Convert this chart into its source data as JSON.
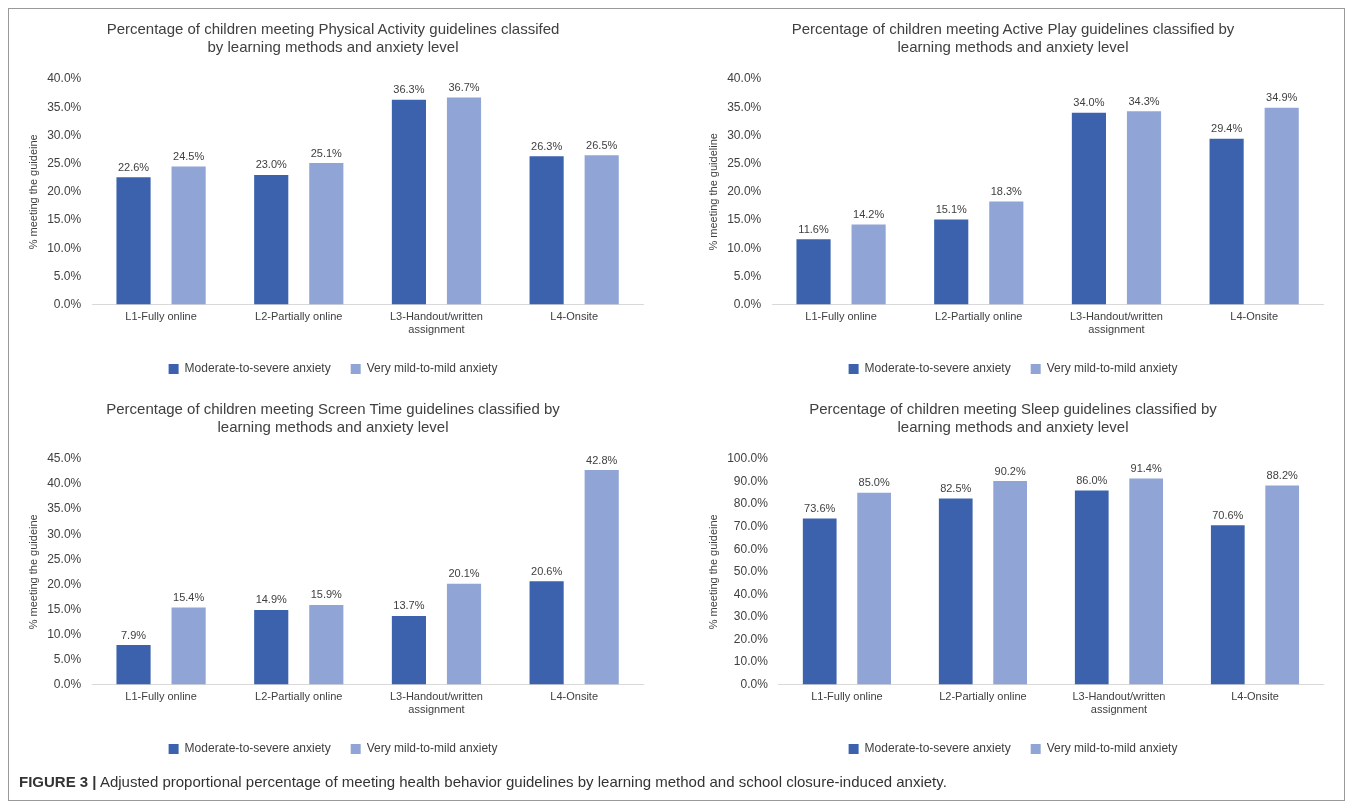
{
  "chart_data": [
    {
      "type": "bar",
      "title": "Percentage of children meeting Physical Activity guidelines classifed by learning methods and anxiety level",
      "ylabel": "% meeting the guideine",
      "categories": [
        "L1-Fully online",
        "L2-Partially online",
        "L3-Handout/written assignment",
        "L4-Onsite"
      ],
      "ylim": [
        0,
        40
      ],
      "yticks": [
        {
          "value": 0,
          "label": "0.0%"
        },
        {
          "value": 5,
          "label": "5.0%"
        },
        {
          "value": 10,
          "label": "10.0%"
        },
        {
          "value": 15,
          "label": "15.0%"
        },
        {
          "value": 20,
          "label": "20.0%"
        },
        {
          "value": 25,
          "label": "25.0%"
        },
        {
          "value": 30,
          "label": "30.0%"
        },
        {
          "value": 35,
          "label": "35.0%"
        },
        {
          "value": 40,
          "label": "40.0%"
        }
      ],
      "legend": "bottom",
      "grid": false,
      "series": [
        {
          "name": "Moderate-to-severe anxiety",
          "color": "#3c62ae",
          "values": [
            22.6,
            23.0,
            36.3,
            26.3
          ],
          "value_labels": [
            "22.6%",
            "23.0%",
            "36.3%",
            "26.3%"
          ]
        },
        {
          "name": "Very mild-to-mild anxiety",
          "color": "#90a4d6",
          "values": [
            24.5,
            25.1,
            36.7,
            26.5
          ],
          "value_labels": [
            "24.5%",
            "25.1%",
            "36.7%",
            "26.5%"
          ]
        }
      ]
    },
    {
      "type": "bar",
      "title": "Percentage of children meeting Active Play guidelines classified by learning methods and anxiety level",
      "ylabel": "% meeting the guideline",
      "categories": [
        "L1-Fully online",
        "L2-Partially online",
        "L3-Handout/written assignment",
        "L4-Onsite"
      ],
      "ylim": [
        0,
        40
      ],
      "yticks": [
        {
          "value": 0,
          "label": "0.0%"
        },
        {
          "value": 5,
          "label": "5.0%"
        },
        {
          "value": 10,
          "label": "10.0%"
        },
        {
          "value": 15,
          "label": "15.0%"
        },
        {
          "value": 20,
          "label": "20.0%"
        },
        {
          "value": 25,
          "label": "25.0%"
        },
        {
          "value": 30,
          "label": "30.0%"
        },
        {
          "value": 35,
          "label": "35.0%"
        },
        {
          "value": 40,
          "label": "40.0%"
        }
      ],
      "legend": "bottom",
      "grid": false,
      "series": [
        {
          "name": "Moderate-to-severe anxiety",
          "color": "#3c62ae",
          "values": [
            11.6,
            15.1,
            34.0,
            29.4
          ],
          "value_labels": [
            "11.6%",
            "15.1%",
            "34.0%",
            "29.4%"
          ]
        },
        {
          "name": "Very mild-to-mild anxiety",
          "color": "#90a4d6",
          "values": [
            14.2,
            18.3,
            34.3,
            34.9
          ],
          "value_labels": [
            "14.2%",
            "18.3%",
            "34.3%",
            "34.9%"
          ]
        }
      ]
    },
    {
      "type": "bar",
      "title": "Percentage of children meeting Screen Time guidelines classified by learning methods and anxiety level",
      "ylabel": "% meeting the guideine",
      "categories": [
        "L1-Fully online",
        "L2-Partially online",
        "L3-Handout/written assignment",
        "L4-Onsite"
      ],
      "ylim": [
        0,
        45
      ],
      "yticks": [
        {
          "value": 0,
          "label": "0.0%"
        },
        {
          "value": 5,
          "label": "5.0%"
        },
        {
          "value": 10,
          "label": "10.0%"
        },
        {
          "value": 15,
          "label": "15.0%"
        },
        {
          "value": 20,
          "label": "20.0%"
        },
        {
          "value": 25,
          "label": "25.0%"
        },
        {
          "value": 30,
          "label": "30.0%"
        },
        {
          "value": 35,
          "label": "35.0%"
        },
        {
          "value": 40,
          "label": "40.0%"
        },
        {
          "value": 45,
          "label": "45.0%"
        }
      ],
      "legend": "bottom",
      "grid": false,
      "series": [
        {
          "name": "Moderate-to-severe anxiety",
          "color": "#3c62ae",
          "values": [
            7.9,
            14.9,
            13.7,
            20.6
          ],
          "value_labels": [
            "7.9%",
            "14.9%",
            "13.7%",
            "20.6%"
          ]
        },
        {
          "name": "Very mild-to-mild anxiety",
          "color": "#90a4d6",
          "values": [
            15.4,
            15.9,
            20.1,
            42.8
          ],
          "value_labels": [
            "15.4%",
            "15.9%",
            "20.1%",
            "42.8%"
          ]
        }
      ]
    },
    {
      "type": "bar",
      "title": "Percentage of children meeting Sleep guidelines classified by learning methods and anxiety level",
      "ylabel": "% meeting the guideine",
      "categories": [
        "L1-Fully online",
        "L2-Partially online",
        "L3-Handout/written assignment",
        "L4-Onsite"
      ],
      "ylim": [
        0,
        100
      ],
      "yticks": [
        {
          "value": 0,
          "label": "0.0%"
        },
        {
          "value": 10,
          "label": "10.0%"
        },
        {
          "value": 20,
          "label": "20.0%"
        },
        {
          "value": 30,
          "label": "30.0%"
        },
        {
          "value": 40,
          "label": "40.0%"
        },
        {
          "value": 50,
          "label": "50.0%"
        },
        {
          "value": 60,
          "label": "60.0%"
        },
        {
          "value": 70,
          "label": "70.0%"
        },
        {
          "value": 80,
          "label": "80.0%"
        },
        {
          "value": 90,
          "label": "90.0%"
        },
        {
          "value": 100,
          "label": "100.0%"
        }
      ],
      "legend": "bottom",
      "grid": false,
      "annotations": [
        "FIGURE 3 | Adjusted proportional percentage of meeting health behavior guidelines by learning method and school closure-induced anxiety."
      ],
      "series": [
        {
          "name": "Moderate-to-severe anxiety",
          "color": "#3c62ae",
          "values": [
            73.6,
            82.5,
            86.0,
            70.6
          ],
          "value_labels": [
            "73.6%",
            "82.5%",
            "86.0%",
            "70.6%"
          ]
        },
        {
          "name": "Very mild-to-mild anxiety",
          "color": "#90a4d6",
          "values": [
            85.0,
            90.2,
            91.4,
            88.2
          ],
          "value_labels": [
            "85.0%",
            "90.2%",
            "91.4%",
            "88.2%"
          ]
        }
      ]
    }
  ]
}
